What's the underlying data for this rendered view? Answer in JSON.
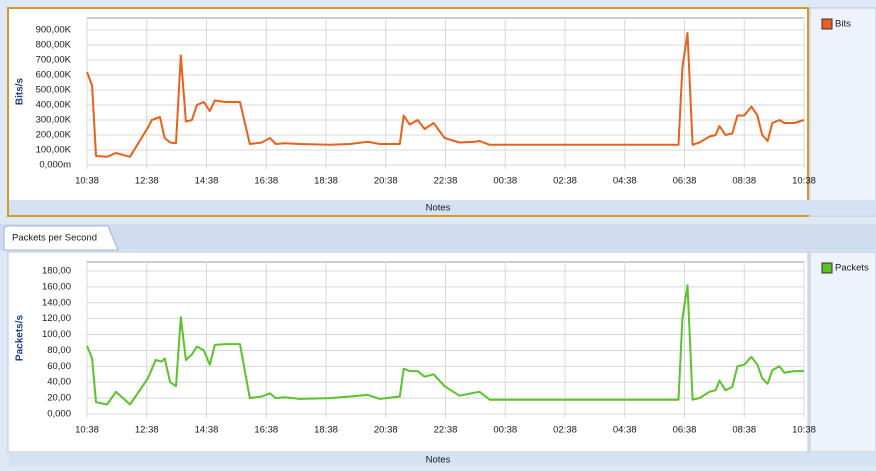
{
  "chart_data": [
    {
      "type": "line",
      "y_label": "Bits/s",
      "grid": true,
      "xlim": [
        0,
        24
      ],
      "ylim": [
        0,
        900000
      ],
      "xticks": [
        {
          "value": 0,
          "label": "10:38"
        },
        {
          "value": 2,
          "label": "12:38"
        },
        {
          "value": 4,
          "label": "14:38"
        },
        {
          "value": 6,
          "label": "16:38"
        },
        {
          "value": 8,
          "label": "18:38"
        },
        {
          "value": 10,
          "label": "20:38"
        },
        {
          "value": 12,
          "label": "22:38"
        },
        {
          "value": 14,
          "label": "00:38"
        },
        {
          "value": 16,
          "label": "02:38"
        },
        {
          "value": 18,
          "label": "04:38"
        },
        {
          "value": 20,
          "label": "06:38"
        },
        {
          "value": 22,
          "label": "08:38"
        },
        {
          "value": 24,
          "label": "10:38"
        }
      ],
      "yticks": [
        {
          "value": 0,
          "label": "0,000m"
        },
        {
          "value": 100000,
          "label": "100,00K"
        },
        {
          "value": 200000,
          "label": "200,00K"
        },
        {
          "value": 300000,
          "label": "300,00K"
        },
        {
          "value": 400000,
          "label": "400,00K"
        },
        {
          "value": 500000,
          "label": "500,00K"
        },
        {
          "value": 600000,
          "label": "600,00K"
        },
        {
          "value": 700000,
          "label": "700,00K"
        },
        {
          "value": 800000,
          "label": "800,00K"
        },
        {
          "value": 900000,
          "label": "900,00K"
        }
      ],
      "x": [
        0,
        0.17,
        0.3,
        0.67,
        0.97,
        1.44,
        2.04,
        2.17,
        2.44,
        2.6,
        2.78,
        2.98,
        3.14,
        3.31,
        3.51,
        3.68,
        3.91,
        4.11,
        4.28,
        4.62,
        5.12,
        5.45,
        5.85,
        6.12,
        6.32,
        6.62,
        7.12,
        8.13,
        8.8,
        9.4,
        9.8,
        10.47,
        10.6,
        10.8,
        11.07,
        11.3,
        11.6,
        11.97,
        12.47,
        12.98,
        13.14,
        13.48,
        15.15,
        17.16,
        19.16,
        19.8,
        19.93,
        20.1,
        20.27,
        20.5,
        20.84,
        21.04,
        21.17,
        21.37,
        21.6,
        21.77,
        22.0,
        22.24,
        22.44,
        22.6,
        22.78,
        22.94,
        23.18,
        23.34,
        23.68,
        24
      ],
      "series": [
        {
          "name": "Bits",
          "color": "#e8601c",
          "values": [
            620000,
            530000,
            60000,
            55000,
            80000,
            55000,
            250000,
            300000,
            320000,
            180000,
            150000,
            145000,
            730000,
            290000,
            300000,
            400000,
            420000,
            360000,
            430000,
            420000,
            420000,
            140000,
            150000,
            180000,
            140000,
            145000,
            140000,
            135000,
            140000,
            155000,
            140000,
            140000,
            330000,
            270000,
            300000,
            240000,
            280000,
            180000,
            150000,
            155000,
            160000,
            135000,
            135000,
            135000,
            135000,
            135000,
            650000,
            880000,
            135000,
            150000,
            190000,
            200000,
            260000,
            200000,
            210000,
            330000,
            330000,
            390000,
            330000,
            200000,
            160000,
            280000,
            300000,
            280000,
            280000,
            300000
          ]
        }
      ]
    },
    {
      "type": "line",
      "y_label": "Packets/s",
      "grid": true,
      "xlim": [
        0,
        24
      ],
      "ylim": [
        0,
        180
      ],
      "xticks": [
        {
          "value": 0,
          "label": "10:38"
        },
        {
          "value": 2,
          "label": "12:38"
        },
        {
          "value": 4,
          "label": "14:38"
        },
        {
          "value": 6,
          "label": "16:38"
        },
        {
          "value": 8,
          "label": "18:38"
        },
        {
          "value": 10,
          "label": "20:38"
        },
        {
          "value": 12,
          "label": "22:38"
        },
        {
          "value": 14,
          "label": "00:38"
        },
        {
          "value": 16,
          "label": "02:38"
        },
        {
          "value": 18,
          "label": "04:38"
        },
        {
          "value": 20,
          "label": "06:38"
        },
        {
          "value": 22,
          "label": "08:38"
        },
        {
          "value": 24,
          "label": "10:38"
        }
      ],
      "yticks": [
        {
          "value": 0,
          "label": "0,000"
        },
        {
          "value": 20,
          "label": "20,00"
        },
        {
          "value": 40,
          "label": "40,00"
        },
        {
          "value": 60,
          "label": "60,00"
        },
        {
          "value": 80,
          "label": "80,00"
        },
        {
          "value": 100,
          "label": "100,00"
        },
        {
          "value": 120,
          "label": "120,00"
        },
        {
          "value": 140,
          "label": "140,00"
        },
        {
          "value": 160,
          "label": "160,00"
        },
        {
          "value": 180,
          "label": "180,00"
        }
      ],
      "x": [
        0,
        0.17,
        0.3,
        0.67,
        0.97,
        1.44,
        2.04,
        2.3,
        2.5,
        2.6,
        2.78,
        2.98,
        3.14,
        3.31,
        3.51,
        3.68,
        3.91,
        4.11,
        4.28,
        4.62,
        5.12,
        5.45,
        5.85,
        6.12,
        6.32,
        6.62,
        7.12,
        8.13,
        8.8,
        9.4,
        9.8,
        10.47,
        10.6,
        10.8,
        11.07,
        11.3,
        11.6,
        11.97,
        12.47,
        12.98,
        13.14,
        13.48,
        15.15,
        17.16,
        19.16,
        19.8,
        19.93,
        20.1,
        20.27,
        20.5,
        20.84,
        21.04,
        21.17,
        21.37,
        21.6,
        21.77,
        22.0,
        22.24,
        22.44,
        22.6,
        22.78,
        22.94,
        23.18,
        23.34,
        23.68,
        24
      ],
      "series": [
        {
          "name": "Packets",
          "color": "#5cc22a",
          "values": [
            86,
            70,
            15,
            12,
            28,
            12,
            45,
            68,
            66,
            70,
            40,
            35,
            122,
            68,
            75,
            85,
            80,
            62,
            87,
            88,
            88,
            20,
            22,
            26,
            20,
            21,
            19,
            20,
            22,
            24,
            19,
            22,
            57,
            54,
            54,
            47,
            50,
            35,
            23,
            27,
            28,
            18,
            18,
            18,
            18,
            18,
            120,
            162,
            18,
            20,
            28,
            30,
            42,
            30,
            34,
            60,
            62,
            72,
            62,
            45,
            38,
            55,
            60,
            52,
            54,
            54
          ]
        }
      ]
    }
  ],
  "ui": {
    "notes": [
      "Notes",
      "Notes"
    ],
    "tab": "Packets per Second"
  }
}
